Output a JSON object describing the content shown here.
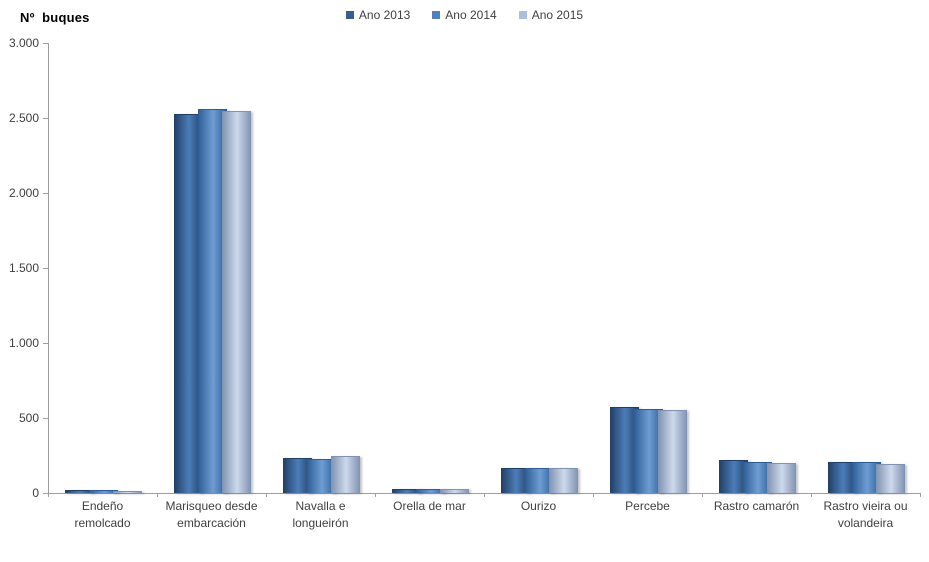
{
  "title": "Nº  buques",
  "axis_color": "#9d9d9d",
  "text_color": "#3f3f3f",
  "legend": [
    {
      "label": "Ano 2013",
      "color": "#355e91"
    },
    {
      "label": "Ano 2014",
      "color": "#4f81bd"
    },
    {
      "label": "Ano 2015",
      "color": "#a9bfdc"
    }
  ],
  "series_bar_colors": [
    {
      "edge": "#203f66",
      "mid": "#4c7db8"
    },
    {
      "edge": "#2e5c94",
      "mid": "#6e9dd4"
    },
    {
      "edge": "#8092b0",
      "mid": "#cdd9ec"
    }
  ],
  "chart_data": {
    "type": "bar",
    "title": "Nº buques",
    "xlabel": "",
    "ylabel": "Nº buques",
    "ylim": [
      0,
      3000
    ],
    "ytick_interval": 500,
    "yticks": [
      {
        "value": 0,
        "label": "0"
      },
      {
        "value": 500,
        "label": "500"
      },
      {
        "value": 1000,
        "label": "1.000"
      },
      {
        "value": 1500,
        "label": "1.500"
      },
      {
        "value": 2000,
        "label": "2.000"
      },
      {
        "value": 2500,
        "label": "2.500"
      },
      {
        "value": 3000,
        "label": "3.000"
      }
    ],
    "grid": false,
    "legend_position": "top-center",
    "categories": [
      "Endeño remolcado",
      "Marisqueo desde embarcación",
      "Navalla e longueirón",
      "Orella de mar",
      "Ourizo",
      "Percebe",
      "Rastro camarón",
      "Rastro vieira ou volandeira"
    ],
    "series": [
      {
        "name": "Ano 2013",
        "values": [
          20,
          2530,
          235,
          30,
          165,
          575,
          220,
          210
        ]
      },
      {
        "name": "Ano 2014",
        "values": [
          18,
          2560,
          230,
          28,
          165,
          560,
          210,
          205
        ]
      },
      {
        "name": "Ano 2015",
        "values": [
          15,
          2550,
          245,
          30,
          170,
          555,
          200,
          195
        ]
      }
    ]
  }
}
